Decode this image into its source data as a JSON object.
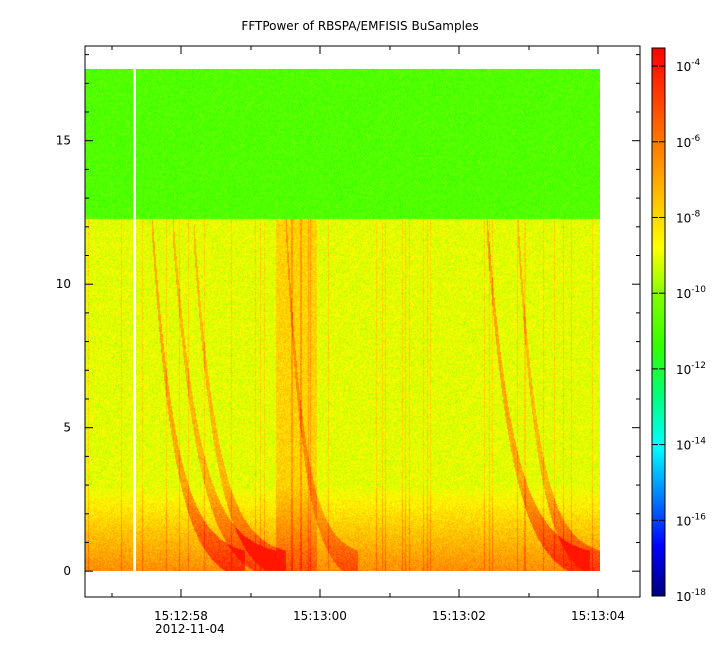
{
  "chart_data": {
    "type": "heatmap",
    "title": "FFTPower of RBSPA/EMFISIS  BuSamples",
    "xlabel": "",
    "ylabel": "",
    "x_ticks": [
      "15:12:58",
      "15:13:00",
      "15:13:02",
      "15:13:04"
    ],
    "x_range_label": "2012-11-04",
    "y_ticks": [
      0,
      5,
      10,
      15
    ],
    "ylim": [
      -0.9,
      18.3
    ],
    "xlim_seconds": [
      -2.2,
      4.0
    ],
    "data_x_range_seconds": [
      -2.2,
      3.55
    ],
    "data_y_range": [
      0.0,
      17.5
    ],
    "data_gap_seconds": [
      -1.66,
      -1.63
    ],
    "colorbar": {
      "scale": "log",
      "range": [
        1e-18,
        0.0003
      ],
      "tick_bases": [
        "10",
        "10",
        "10",
        "10",
        "10",
        "10",
        "10",
        "10"
      ],
      "tick_exponents": [
        "-4",
        "-6",
        "-8",
        "-10",
        "-12",
        "-14",
        "-16",
        "-18"
      ],
      "colormap": [
        "#00007f",
        "#0000ff",
        "#007fff",
        "#00ffff",
        "#00ff7f",
        "#33ff00",
        "#7fff00",
        "#ffff00",
        "#ffbf00",
        "#ff7f00",
        "#ff3f00",
        "#ff0000"
      ]
    },
    "grid": false,
    "legend": "none"
  }
}
